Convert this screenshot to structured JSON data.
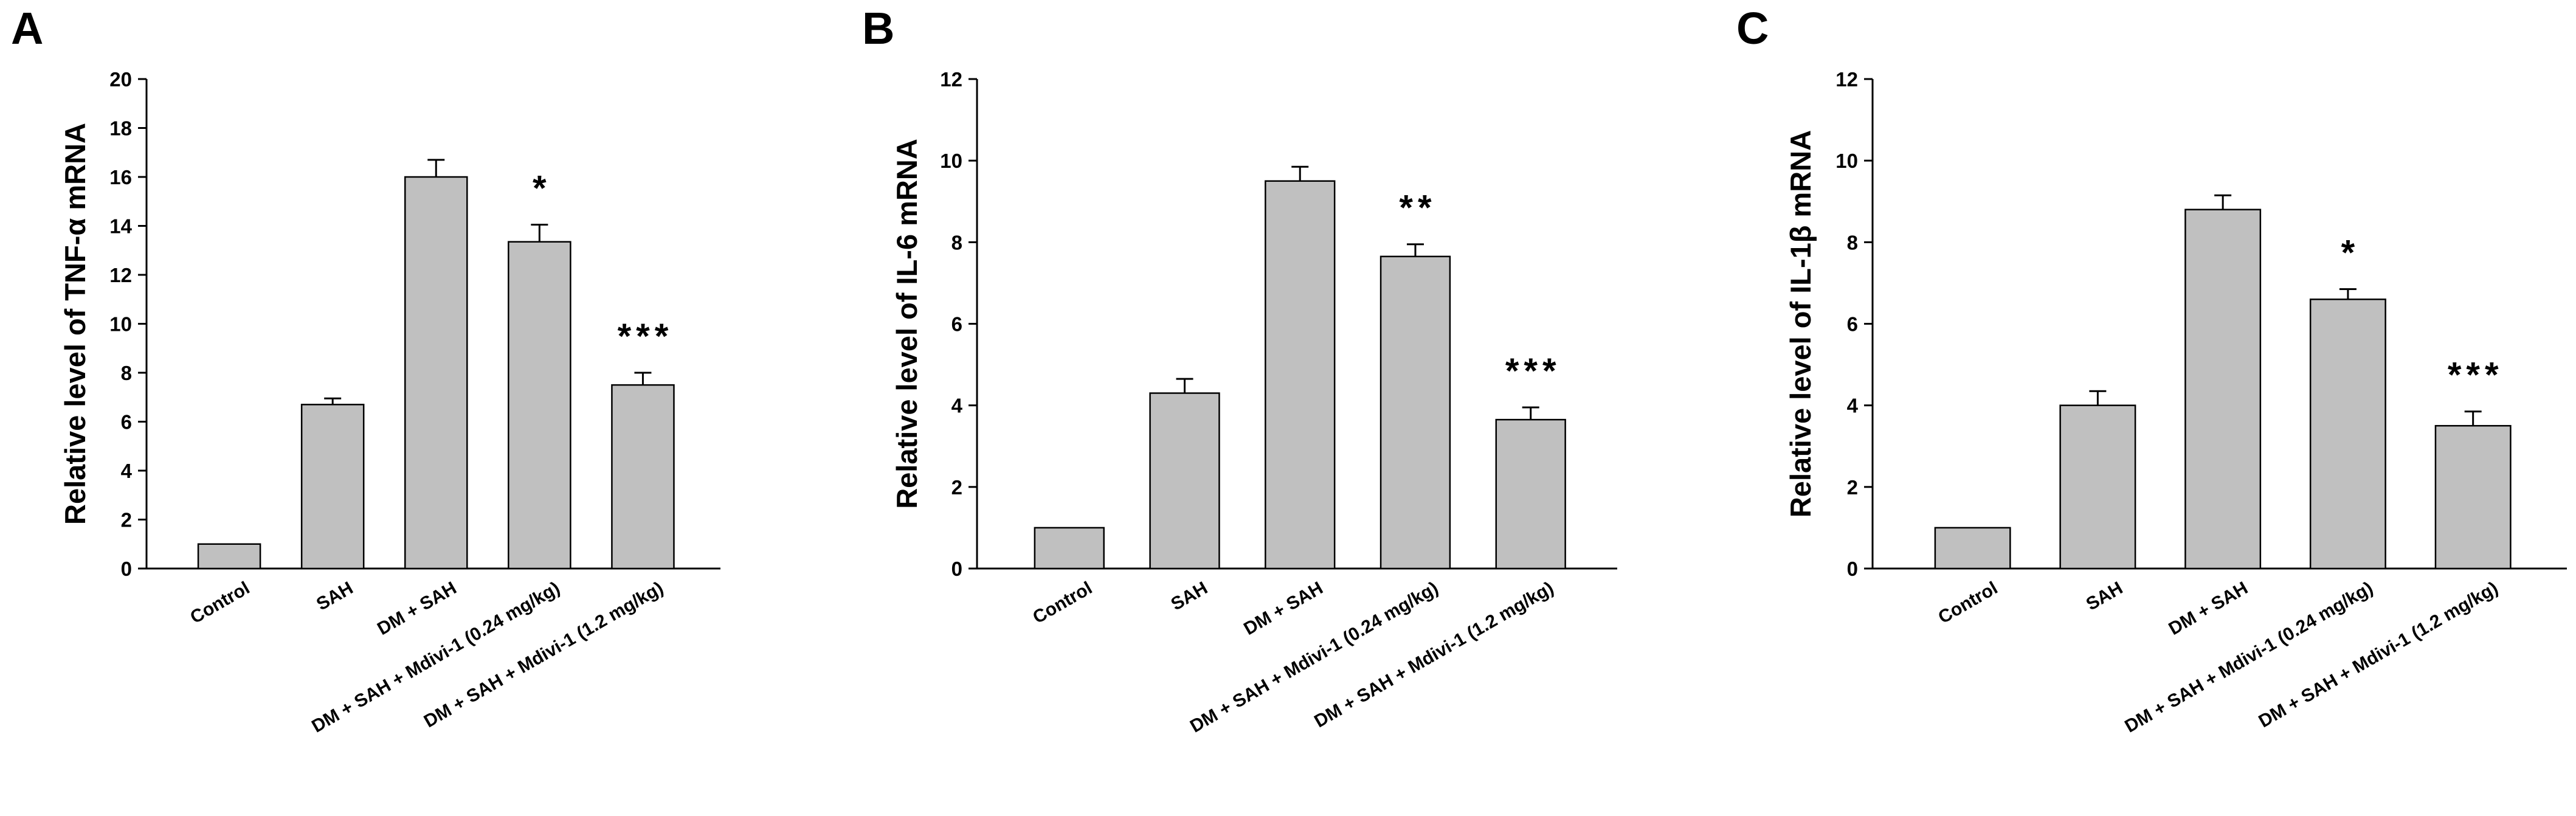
{
  "chart_data": [
    {
      "type": "bar",
      "panel": "A",
      "ylabel": "Relative level of TNF-α mRNA",
      "categories": [
        "Control",
        "SAH",
        "DM + SAH",
        "DM + SAH + Mdivi-1 (0.24 mg/kg)",
        "DM + SAH + Mdivi-1 (1.2 mg/kg)"
      ],
      "values": [
        1.0,
        6.7,
        16.0,
        13.35,
        7.5
      ],
      "errors": [
        0,
        0.25,
        0.7,
        0.7,
        0.5
      ],
      "significance": [
        "",
        "",
        "",
        "*",
        "***"
      ],
      "ylim": [
        0,
        20
      ],
      "yticks": [
        "0",
        "2",
        "4",
        "6",
        "8",
        "10",
        "12",
        "14",
        "16",
        "18",
        "20"
      ],
      "grid": false
    },
    {
      "type": "bar",
      "panel": "B",
      "ylabel": "Relative level of IL-6 mRNA",
      "categories": [
        "Control",
        "SAH",
        "DM + SAH",
        "DM + SAH + Mdivi-1 (0.24 mg/kg)",
        "DM + SAH + Mdivi-1 (1.2 mg/kg)"
      ],
      "values": [
        1.0,
        4.3,
        9.5,
        7.65,
        3.65
      ],
      "errors": [
        0,
        0.35,
        0.35,
        0.3,
        0.3
      ],
      "significance": [
        "",
        "",
        "",
        "**",
        "***"
      ],
      "ylim": [
        0,
        12
      ],
      "yticks": [
        "0",
        "2",
        "4",
        "6",
        "8",
        "10",
        "12"
      ],
      "grid": false
    },
    {
      "type": "bar",
      "panel": "C",
      "ylabel": "Relative level of IL-1β mRNA",
      "categories": [
        "Control",
        "SAH",
        "DM + SAH",
        "DM + SAH + Mdivi-1 (0.24 mg/kg)",
        "DM + SAH + Mdivi-1 (1.2 mg/kg)"
      ],
      "values": [
        1.0,
        4.0,
        8.8,
        6.6,
        3.5
      ],
      "errors": [
        0,
        0.35,
        0.35,
        0.25,
        0.35
      ],
      "significance": [
        "",
        "",
        "",
        "*",
        "***"
      ],
      "ylim": [
        0,
        12
      ],
      "yticks": [
        "0",
        "2",
        "4",
        "6",
        "8",
        "10",
        "12"
      ],
      "grid": false
    }
  ],
  "colors": {
    "bar_fill": "#c0c0c0",
    "bar_stroke": "#000000"
  }
}
